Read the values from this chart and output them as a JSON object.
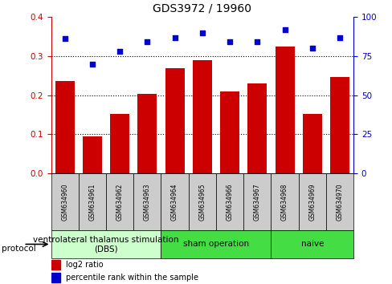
{
  "title": "GDS3972 / 19960",
  "samples": [
    "GSM634960",
    "GSM634961",
    "GSM634962",
    "GSM634963",
    "GSM634964",
    "GSM634965",
    "GSM634966",
    "GSM634967",
    "GSM634968",
    "GSM634969",
    "GSM634970"
  ],
  "log2_ratio": [
    0.237,
    0.095,
    0.152,
    0.203,
    0.268,
    0.289,
    0.21,
    0.23,
    0.325,
    0.152,
    0.246
  ],
  "percentile_rank": [
    86,
    70,
    78,
    84,
    87,
    90,
    84,
    84,
    92,
    80,
    87
  ],
  "bar_color": "#cc0000",
  "dot_color": "#0000cc",
  "ylim_left": [
    0,
    0.4
  ],
  "ylim_right": [
    0,
    100
  ],
  "yticks_left": [
    0,
    0.1,
    0.2,
    0.3,
    0.4
  ],
  "yticks_right": [
    0,
    25,
    50,
    75,
    100
  ],
  "groups": [
    {
      "label": "ventrolateral thalamus stimulation\n(DBS)",
      "start": 0,
      "end": 3,
      "color": "#ccffcc"
    },
    {
      "label": "sham operation",
      "start": 4,
      "end": 7,
      "color": "#44dd44"
    },
    {
      "label": "naive",
      "start": 8,
      "end": 10,
      "color": "#44dd44"
    }
  ],
  "protocol_label": "protocol",
  "legend_bar_label": "log2 ratio",
  "legend_dot_label": "percentile rank within the sample",
  "bar_color_legend": "#cc0000",
  "dot_color_legend": "#0000cc",
  "tick_label_color_left": "#cc0000",
  "tick_label_color_right": "#0000cc",
  "title_fontsize": 10,
  "tick_fontsize": 7.5,
  "sample_fontsize": 5.5,
  "group_fontsize": 7.5,
  "legend_fontsize": 7
}
